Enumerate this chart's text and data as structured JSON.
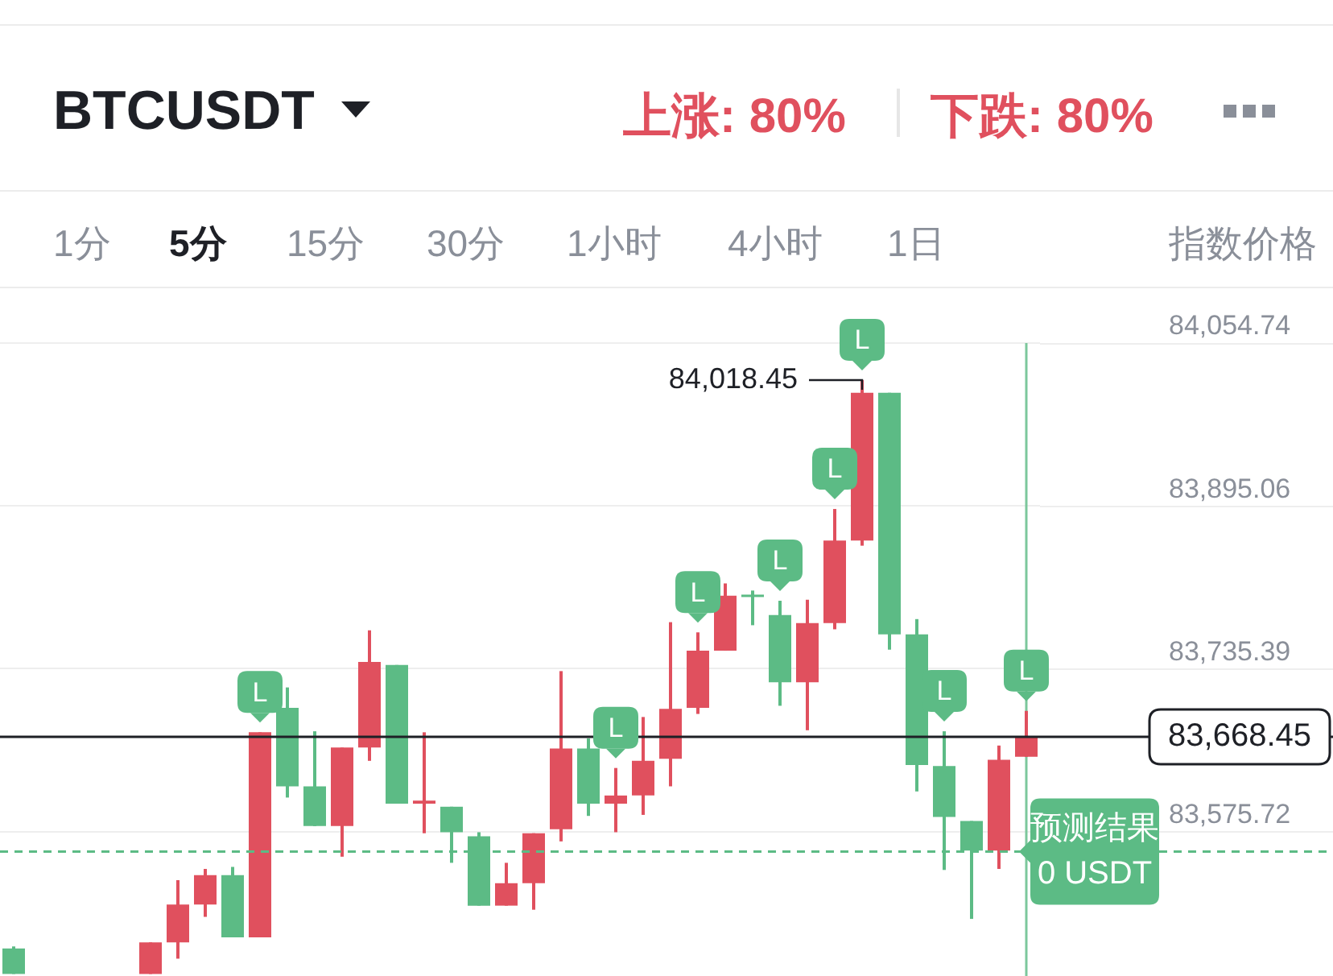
{
  "chart_data": {
    "type": "candlestick",
    "title": "BTCUSDT",
    "annotations": [
      "上涨: 80%",
      "下跌: 80%",
      "1分",
      "5分",
      "15分",
      "30分",
      "1小时",
      "4小时",
      "1日",
      "指数价格",
      "84,018.45"
    ],
    "categories": [
      null,
      null,
      null,
      null,
      null,
      null,
      null,
      null,
      null,
      null,
      null,
      null,
      null,
      null,
      null,
      null,
      null,
      null,
      null,
      null,
      null,
      null,
      null,
      null,
      null,
      null,
      null,
      null,
      null,
      null,
      null,
      null,
      null,
      null,
      null,
      null,
      null,
      null
    ],
    "ohlc": [
      [
        83461,
        83463,
        83436,
        83436
      ],
      null,
      null,
      null,
      null,
      [
        83436,
        83467,
        83436,
        83467
      ],
      [
        83467,
        83528,
        83451,
        83504
      ],
      [
        83504,
        83539,
        83492,
        83533
      ],
      [
        83533,
        83541,
        83472,
        83472
      ],
      [
        83472,
        83673,
        83472,
        83673
      ],
      [
        83697,
        83717,
        83609,
        83620
      ],
      [
        83620,
        83674,
        83581,
        83581
      ],
      [
        83581,
        83658,
        83551,
        83658
      ],
      [
        83658,
        83773,
        83645,
        83742
      ],
      [
        83739,
        83739,
        83603,
        83603
      ],
      [
        83603,
        83673,
        83574,
        83606
      ],
      [
        83600,
        83600,
        83545,
        83575
      ],
      [
        83571,
        83575,
        83503,
        83503
      ],
      [
        83503,
        83545,
        83503,
        83525
      ],
      [
        83525,
        83574,
        83499,
        83574
      ],
      [
        83578,
        83733,
        83566,
        83657
      ],
      [
        83657,
        83667,
        83591,
        83603
      ],
      [
        83603,
        83638,
        83575,
        83611
      ],
      [
        83611,
        83688,
        83592,
        83645
      ],
      [
        83647,
        83781,
        83620,
        83696
      ],
      [
        83697,
        83771,
        83691,
        83753
      ],
      [
        83753,
        83819,
        83753,
        83807
      ],
      [
        83808,
        83812,
        83778,
        83807
      ],
      [
        83788,
        83802,
        83699,
        83722
      ],
      [
        83722,
        83803,
        83675,
        83780
      ],
      [
        83780,
        83892,
        83774,
        83861
      ],
      [
        83861,
        84018.45,
        83856,
        84006
      ],
      [
        84006,
        84006,
        83754,
        83769
      ],
      [
        83769,
        83784,
        83615,
        83641
      ],
      [
        83640,
        83674,
        83538,
        83590
      ],
      [
        83586,
        83586,
        83490,
        83557
      ],
      [
        83557,
        83660,
        83539,
        83646
      ],
      [
        83649,
        83694,
        83649,
        83668.45
      ]
    ],
    "colors": [
      "#5cbb85",
      null,
      null,
      null,
      null,
      "#e0505e",
      "#e0505e",
      "#e0505e",
      "#5cbb85",
      "#e0505e",
      "#5cbb85",
      "#5cbb85",
      "#e0505e",
      "#e0505e",
      "#5cbb85",
      "#e0505e",
      "#5cbb85",
      "#5cbb85",
      "#e0505e",
      "#e0505e",
      "#e0505e",
      "#5cbb85",
      "#e0505e",
      "#e0505e",
      "#e0505e",
      "#e0505e",
      "#e0505e",
      "#5cbb85",
      "#5cbb85",
      "#e0505e",
      "#e0505e",
      "#e0505e",
      "#5cbb85",
      "#5cbb85",
      "#5cbb85",
      "#5cbb85",
      "#e0505e",
      "#e0505e"
    ],
    "value_labels": [
      null,
      null,
      null,
      null,
      null,
      null,
      null,
      null,
      null,
      "L",
      null,
      null,
      null,
      null,
      null,
      null,
      null,
      null,
      null,
      null,
      null,
      null,
      "L",
      null,
      null,
      "L",
      null,
      null,
      "L",
      null,
      "L",
      "L",
      null,
      null,
      "L",
      null,
      null,
      "L"
    ],
    "ylim": [
      83434,
      84110
    ],
    "yticks": [
      {
        "value": 83575.72,
        "label": "83,575.72"
      },
      {
        "value": 83735.39,
        "label": "83,735.39"
      },
      {
        "value": 83895.06,
        "label": "83,895.06"
      },
      {
        "value": 84054.74,
        "label": "84,054.74"
      }
    ],
    "grid": "y",
    "tick_labels": "y",
    "ref_lines": [
      {
        "axis": "y",
        "value": 83668.45,
        "label": "83,668.45",
        "color": "#1e2026"
      },
      {
        "axis": "y",
        "value": 83556,
        "label": "预测结果\n0 USDT",
        "color": "#5cbb85",
        "line_style": "dashed"
      }
    ]
  }
}
